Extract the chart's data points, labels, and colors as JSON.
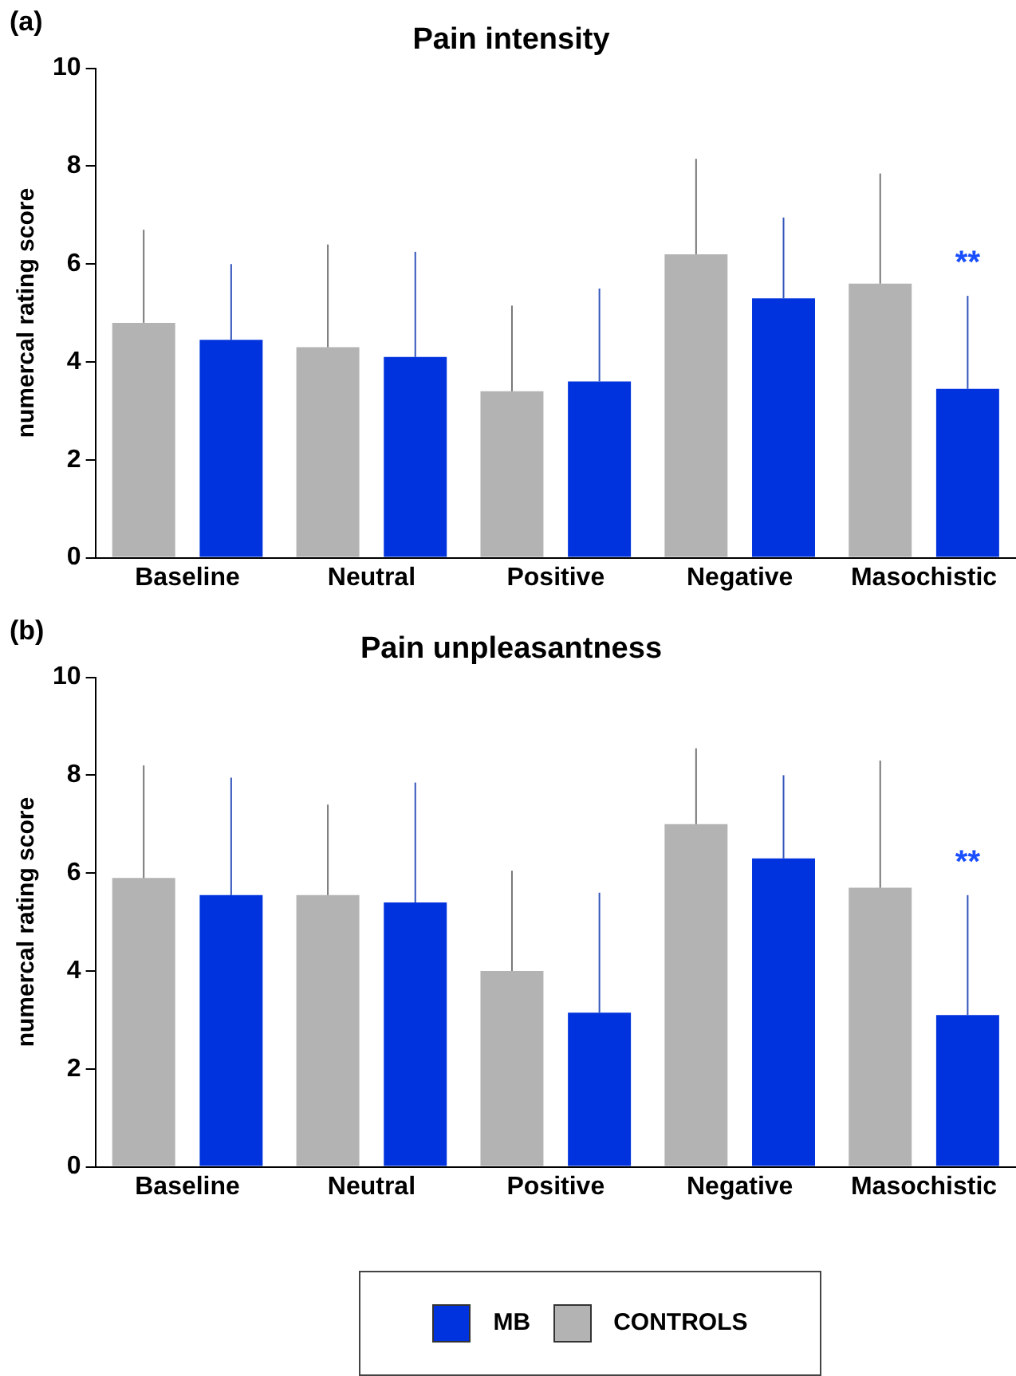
{
  "chart_data": [
    {
      "type": "bar",
      "title": "Pain intensity",
      "ylabel": "numercal rating score",
      "categories": [
        "Baseline",
        "Neutral",
        "Positive",
        "Negative",
        "Masochistic"
      ],
      "series": [
        {
          "color": "#b3b3b3",
          "values": [
            4.8,
            4.3,
            3.4,
            6.2,
            5.6
          ],
          "errors": [
            [
              4.8,
              6.7
            ],
            [
              4.3,
              6.4
            ],
            [
              3.4,
              5.15
            ],
            [
              6.2,
              8.15
            ],
            [
              5.6,
              7.85
            ]
          ]
        },
        {
          "color": "#0033dd",
          "values": [
            4.45,
            4.1,
            3.6,
            5.3,
            3.45
          ],
          "errors": [
            [
              4.45,
              6.0
            ],
            [
              4.1,
              6.25
            ],
            [
              3.6,
              5.5
            ],
            [
              5.3,
              6.95
            ],
            [
              3.45,
              5.35
            ]
          ]
        }
      ],
      "ylim": [
        0,
        10
      ],
      "yticks": [
        0,
        2,
        4,
        6,
        8,
        10
      ],
      "grid": false,
      "annotations": [
        "(a)",
        "**"
      ]
    },
    {
      "type": "bar",
      "title": "Pain unpleasantness",
      "ylabel": "numercal rating score",
      "categories": [
        "Baseline",
        "Neutral",
        "Positive",
        "Negative",
        "Masochistic"
      ],
      "series": [
        {
          "name": "CONTROLS",
          "color": "#b3b3b3",
          "values": [
            5.9,
            5.55,
            4.0,
            7.0,
            5.7
          ],
          "errors": [
            [
              5.9,
              8.2
            ],
            [
              5.55,
              7.4
            ],
            [
              4.0,
              6.05
            ],
            [
              7.0,
              8.55
            ],
            [
              5.7,
              8.3
            ]
          ]
        },
        {
          "name": "MB",
          "color": "#0033dd",
          "values": [
            5.55,
            5.4,
            3.15,
            6.3,
            3.1
          ],
          "errors": [
            [
              5.55,
              7.95
            ],
            [
              5.4,
              7.85
            ],
            [
              3.15,
              5.6
            ],
            [
              6.3,
              8.0
            ],
            [
              3.1,
              5.55
            ]
          ]
        }
      ],
      "ylim": [
        0,
        10
      ],
      "yticks": [
        0,
        2,
        4,
        6,
        8,
        10
      ],
      "grid": false,
      "legend": "bottom",
      "annotations": [
        "(b)",
        "**"
      ]
    }
  ]
}
